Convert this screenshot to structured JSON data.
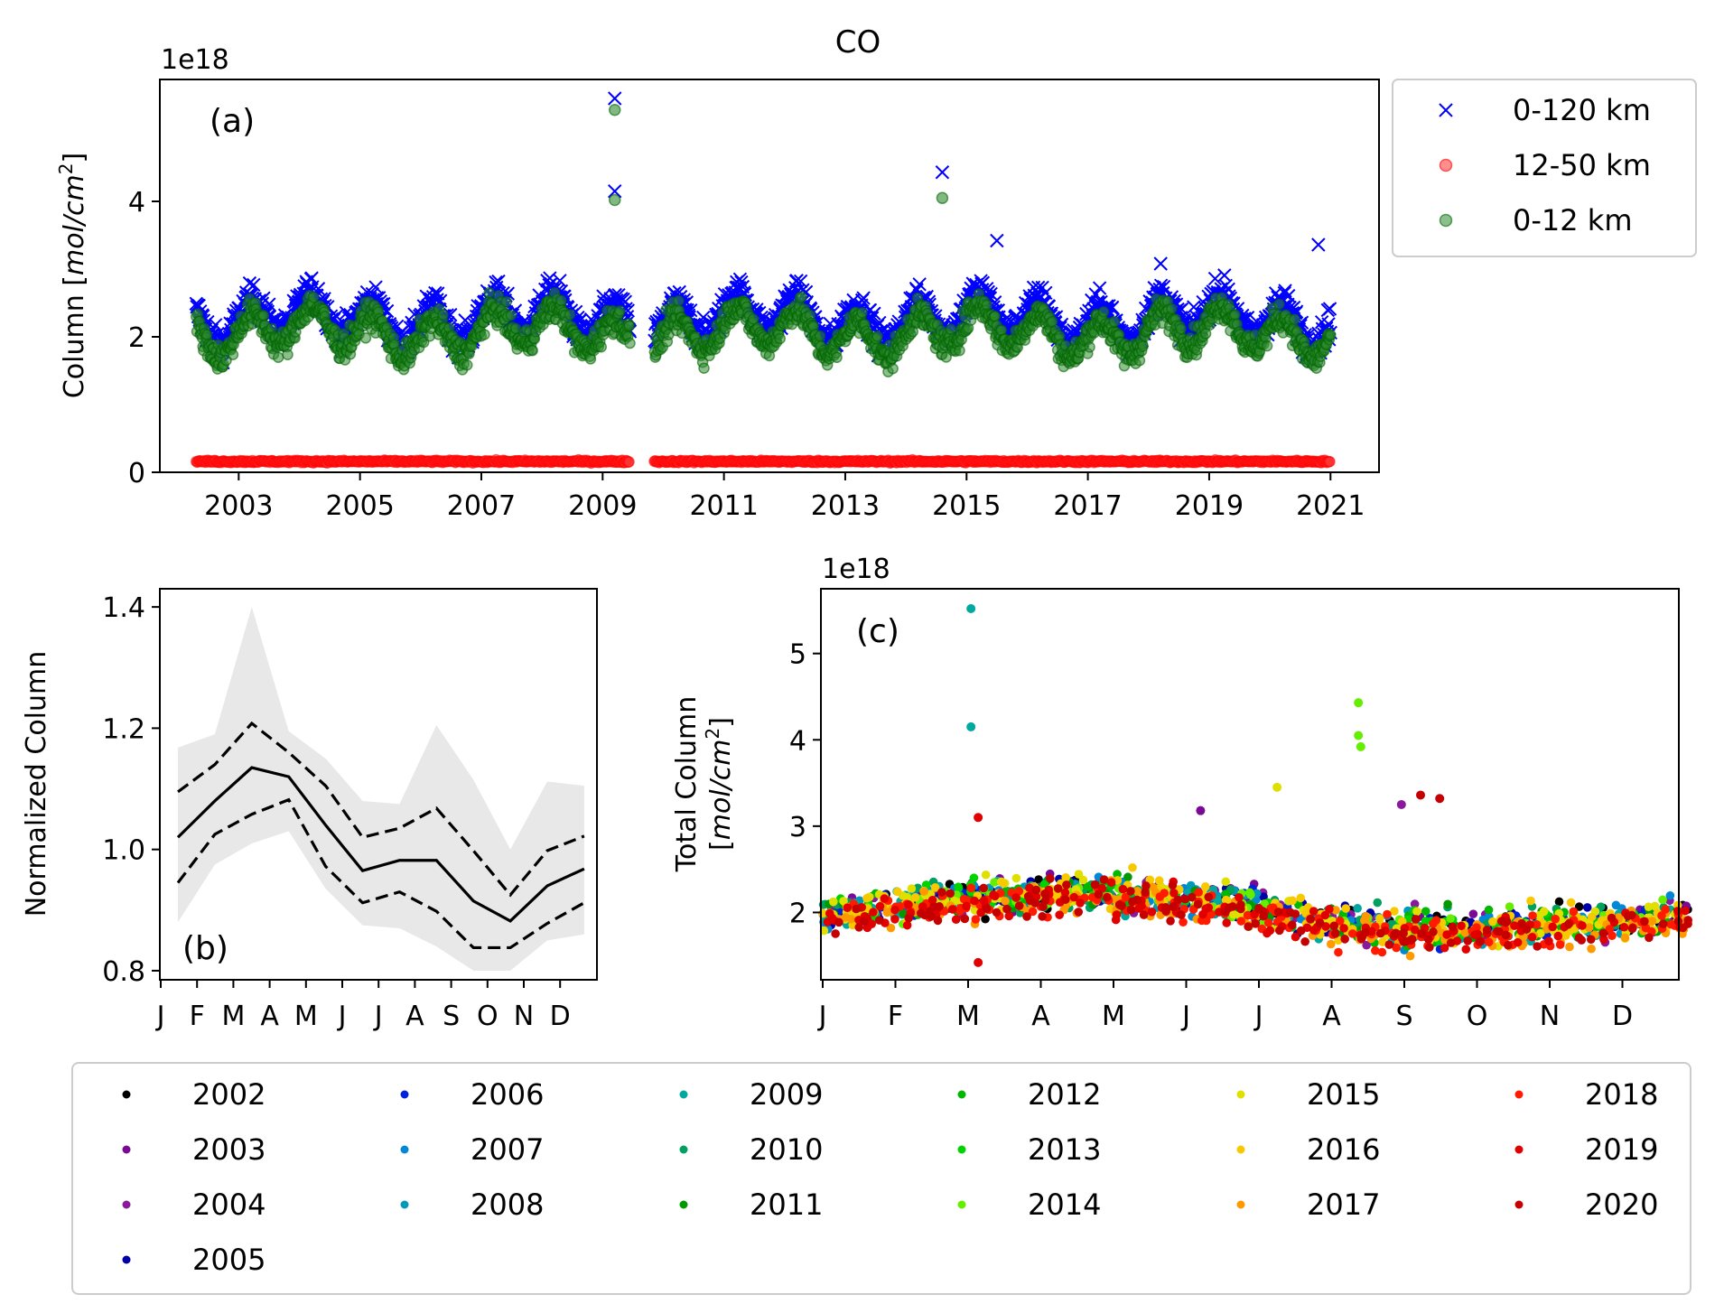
{
  "figure_title": "CO",
  "chart_data": [
    {
      "panel": "a",
      "type": "scatter",
      "title": "CO",
      "panel_label": "(a)",
      "xlabel": "",
      "ylabel": "Column [mol/cm²]",
      "ylabel_prefix": "Column [",
      "ylabel_unit": "mol/cm",
      "ylabel_exp": "2",
      "ylabel_suffix": "]",
      "y_scale_label": "1e18",
      "xlim": [
        2001.7,
        2021.8
      ],
      "ylim": [
        0,
        5.8
      ],
      "xticks": [
        2003,
        2005,
        2007,
        2009,
        2011,
        2013,
        2015,
        2017,
        2019,
        2021
      ],
      "xtick_labels": [
        "2003",
        "2005",
        "2007",
        "2009",
        "2011",
        "2013",
        "2015",
        "2017",
        "2019",
        "2021"
      ],
      "yticks": [
        0,
        2,
        4
      ],
      "ytick_labels": [
        "0",
        "2",
        "4"
      ],
      "legend_position": "outside-right-top",
      "series": [
        {
          "name": "0-120 km",
          "marker": "x",
          "color": "#0000ff",
          "typical_range": [
            1.6,
            3.0
          ]
        },
        {
          "name": "12-50 km",
          "marker": "o",
          "color": "#ff0000",
          "typical_range": [
            0.1,
            0.2
          ]
        },
        {
          "name": "0-12 km",
          "marker": "o",
          "color": "#008000",
          "typical_range": [
            1.4,
            2.8
          ]
        }
      ],
      "outliers_0_120km": [
        {
          "x": 2009.2,
          "y": 5.52
        },
        {
          "x": 2009.2,
          "y": 4.15
        },
        {
          "x": 2014.6,
          "y": 4.43
        },
        {
          "x": 2015.5,
          "y": 3.42
        },
        {
          "x": 2018.2,
          "y": 3.08
        },
        {
          "x": 2020.8,
          "y": 3.36
        }
      ],
      "outliers_0_12km": [
        {
          "x": 2009.2,
          "y": 5.35
        },
        {
          "x": 2009.2,
          "y": 4.02
        },
        {
          "x": 2014.6,
          "y": 4.05
        }
      ]
    },
    {
      "panel": "b",
      "type": "line",
      "panel_label": "(b)",
      "xlabel": "",
      "ylabel": "Normalized Column",
      "categories": [
        "J",
        "F",
        "M",
        "A",
        "M",
        "J",
        "J",
        "A",
        "S",
        "O",
        "N",
        "D"
      ],
      "ylim": [
        0.785,
        1.43
      ],
      "yticks": [
        0.8,
        1.0,
        1.2,
        1.4
      ],
      "ytick_labels": [
        "0.8",
        "1.0",
        "1.2",
        "1.4"
      ],
      "series": [
        {
          "name": "mean",
          "style": "solid",
          "color": "#000000",
          "values": [
            1.02,
            1.08,
            1.135,
            1.12,
            1.04,
            0.965,
            0.982,
            0.982,
            0.915,
            0.882,
            0.94,
            0.968
          ]
        },
        {
          "name": "upper",
          "style": "dashed",
          "color": "#000000",
          "values": [
            1.095,
            1.14,
            1.208,
            1.16,
            1.105,
            1.02,
            1.035,
            1.068,
            0.998,
            0.925,
            0.998,
            1.022
          ]
        },
        {
          "name": "lower",
          "style": "dashed",
          "color": "#000000",
          "values": [
            0.945,
            1.025,
            1.058,
            1.082,
            0.972,
            0.912,
            0.93,
            0.898,
            0.838,
            0.838,
            0.878,
            0.912
          ]
        },
        {
          "name": "range_max",
          "style": "fill",
          "color": "#e8e8e8",
          "values": [
            1.168,
            1.19,
            1.4,
            1.195,
            1.15,
            1.08,
            1.075,
            1.205,
            1.115,
            1.0,
            1.112,
            1.105
          ]
        },
        {
          "name": "range_min",
          "style": "fill",
          "color": "#e8e8e8",
          "values": [
            0.88,
            0.975,
            1.01,
            1.03,
            0.935,
            0.875,
            0.87,
            0.84,
            0.8,
            0.8,
            0.85,
            0.86
          ]
        }
      ]
    },
    {
      "panel": "c",
      "type": "scatter",
      "panel_label": "(c)",
      "xlabel": "",
      "ylabel_line1": "Total Column",
      "ylabel_line2_prefix": "[",
      "ylabel_line2_unit": "mol/cm",
      "ylabel_line2_exp": "2",
      "ylabel_line2_suffix": "]",
      "y_scale_label": "1e18",
      "categories": [
        "J",
        "F",
        "M",
        "A",
        "M",
        "J",
        "J",
        "A",
        "S",
        "O",
        "N",
        "D"
      ],
      "ylim": [
        1.22,
        5.75
      ],
      "yticks": [
        2,
        3,
        4,
        5
      ],
      "ytick_labels": [
        "2",
        "3",
        "4",
        "5"
      ],
      "outliers": [
        {
          "year": "2009",
          "day": 62,
          "y": 5.52
        },
        {
          "year": "2009",
          "day": 62,
          "y": 4.15
        },
        {
          "year": "2014",
          "day": 224,
          "y": 4.43
        },
        {
          "year": "2014",
          "day": 224,
          "y": 4.05
        },
        {
          "year": "2014",
          "day": 225,
          "y": 3.92
        },
        {
          "year": "2015",
          "day": 190,
          "y": 3.45
        },
        {
          "year": "2020",
          "day": 250,
          "y": 3.36
        },
        {
          "year": "2020",
          "day": 258,
          "y": 3.32
        },
        {
          "year": "2003",
          "day": 158,
          "y": 3.18
        },
        {
          "year": "2019",
          "day": 65,
          "y": 3.1
        },
        {
          "year": "2004",
          "day": 242,
          "y": 3.25
        },
        {
          "year": "2019",
          "day": 65,
          "y": 1.42
        }
      ]
    }
  ],
  "year_legend": {
    "entries": [
      {
        "year": "2002",
        "color": "#000000"
      },
      {
        "year": "2003",
        "color": "#7a0a96"
      },
      {
        "year": "2004",
        "color": "#8a1a9c"
      },
      {
        "year": "2005",
        "color": "#0000a8"
      },
      {
        "year": "2006",
        "color": "#0022d8"
      },
      {
        "year": "2007",
        "color": "#0088d6"
      },
      {
        "year": "2008",
        "color": "#0099bb"
      },
      {
        "year": "2009",
        "color": "#00a8a0"
      },
      {
        "year": "2010",
        "color": "#00a060"
      },
      {
        "year": "2011",
        "color": "#009a00"
      },
      {
        "year": "2012",
        "color": "#00b800"
      },
      {
        "year": "2013",
        "color": "#00d400"
      },
      {
        "year": "2014",
        "color": "#66ee00"
      },
      {
        "year": "2015",
        "color": "#e0e000"
      },
      {
        "year": "2016",
        "color": "#f8c800"
      },
      {
        "year": "2017",
        "color": "#ff9900"
      },
      {
        "year": "2018",
        "color": "#ff1a00"
      },
      {
        "year": "2019",
        "color": "#e00000"
      },
      {
        "year": "2020",
        "color": "#c40000"
      }
    ]
  }
}
